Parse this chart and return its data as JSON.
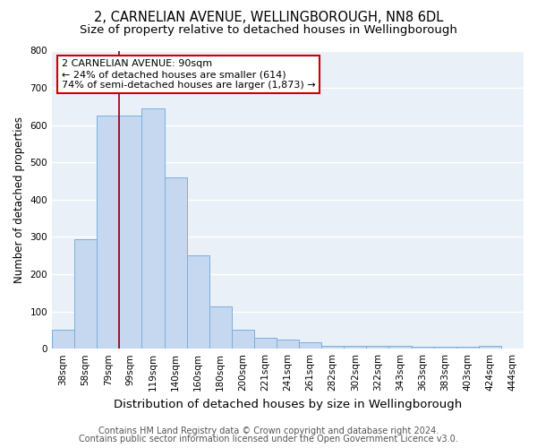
{
  "title1": "2, CARNELIAN AVENUE, WELLINGBOROUGH, NN8 6DL",
  "title2": "Size of property relative to detached houses in Wellingborough",
  "xlabel": "Distribution of detached houses by size in Wellingborough",
  "ylabel": "Number of detached properties",
  "categories": [
    "38sqm",
    "58sqm",
    "79sqm",
    "99sqm",
    "119sqm",
    "140sqm",
    "160sqm",
    "180sqm",
    "200sqm",
    "221sqm",
    "241sqm",
    "261sqm",
    "282sqm",
    "302sqm",
    "322sqm",
    "343sqm",
    "363sqm",
    "383sqm",
    "403sqm",
    "424sqm",
    "444sqm"
  ],
  "values": [
    50,
    295,
    625,
    625,
    645,
    460,
    250,
    113,
    50,
    30,
    25,
    18,
    8,
    8,
    8,
    8,
    5,
    5,
    5,
    8,
    0
  ],
  "bar_color": "#c5d8f0",
  "bar_edge_color": "#7aafdf",
  "vline_color": "#8b0000",
  "annotation_text": "2 CARNELIAN AVENUE: 90sqm\n← 24% of detached houses are smaller (614)\n74% of semi-detached houses are larger (1,873) →",
  "annotation_box_color": "#ffffff",
  "annotation_box_edge": "#cc0000",
  "ylim": [
    0,
    800
  ],
  "yticks": [
    0,
    100,
    200,
    300,
    400,
    500,
    600,
    700,
    800
  ],
  "footer1": "Contains HM Land Registry data © Crown copyright and database right 2024.",
  "footer2": "Contains public sector information licensed under the Open Government Licence v3.0.",
  "bg_color": "#ffffff",
  "plot_bg_color": "#eaf0f8",
  "grid_color": "#ffffff",
  "title1_fontsize": 10.5,
  "title2_fontsize": 9.5,
  "xlabel_fontsize": 9.5,
  "ylabel_fontsize": 8.5,
  "tick_fontsize": 7.5,
  "footer_fontsize": 7
}
